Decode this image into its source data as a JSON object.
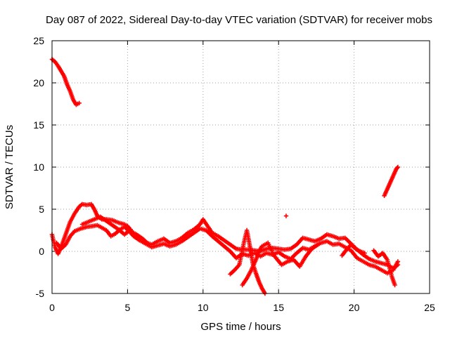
{
  "chart_data": {
    "type": "scatter",
    "title": "Day 087 of 2022, Sidereal Day-to-day VTEC variation (SDTVAR) for receiver mobs",
    "xlabel": "GPS time / hours",
    "ylabel": "SDTVAR / TECUs",
    "xlim": [
      0,
      25
    ],
    "ylim": [
      -5,
      25
    ],
    "xticks": [
      0,
      5,
      10,
      15,
      20,
      25
    ],
    "yticks": [
      -5,
      0,
      5,
      10,
      15,
      20,
      25
    ],
    "grid": true,
    "marker": "plus",
    "series": [
      {
        "name": "SDTVAR",
        "color": "#ff0000",
        "segments": [
          [
            [
              0.0,
              22.8
            ],
            [
              0.2,
              22.5
            ],
            [
              0.4,
              22.0
            ],
            [
              0.6,
              21.4
            ],
            [
              0.8,
              20.8
            ],
            [
              1.0,
              19.8
            ],
            [
              1.2,
              19.0
            ],
            [
              1.4,
              18.0
            ],
            [
              1.6,
              17.4
            ],
            [
              1.8,
              17.6
            ]
          ],
          [
            [
              22.0,
              6.6
            ],
            [
              22.2,
              7.4
            ],
            [
              22.4,
              8.2
            ],
            [
              22.6,
              9.0
            ],
            [
              22.8,
              9.8
            ],
            [
              22.9,
              10.0
            ]
          ],
          [
            [
              0.0,
              2.0
            ],
            [
              0.2,
              0.5
            ],
            [
              0.4,
              -0.3
            ],
            [
              0.6,
              0.5
            ],
            [
              0.8,
              1.5
            ],
            [
              1.0,
              2.5
            ],
            [
              1.2,
              3.5
            ],
            [
              1.5,
              4.5
            ],
            [
              1.8,
              5.3
            ],
            [
              2.0,
              5.6
            ],
            [
              2.3,
              5.5
            ],
            [
              2.6,
              5.6
            ],
            [
              2.8,
              5.0
            ],
            [
              3.0,
              4.2
            ],
            [
              3.3,
              3.8
            ],
            [
              3.6,
              3.8
            ],
            [
              4.0,
              3.7
            ],
            [
              4.4,
              3.4
            ],
            [
              4.8,
              3.2
            ],
            [
              5.0,
              3.0
            ],
            [
              5.3,
              2.3
            ],
            [
              5.6,
              2.0
            ],
            [
              6.0,
              1.5
            ],
            [
              6.3,
              1.0
            ],
            [
              6.6,
              0.8
            ],
            [
              7.0,
              1.2
            ],
            [
              7.4,
              1.5
            ],
            [
              7.8,
              1.0
            ],
            [
              8.2,
              1.2
            ],
            [
              8.6,
              1.6
            ],
            [
              9.0,
              2.2
            ],
            [
              9.4,
              2.6
            ],
            [
              9.8,
              3.2
            ],
            [
              10.0,
              3.8
            ],
            [
              10.3,
              3.0
            ],
            [
              10.6,
              2.2
            ],
            [
              11.0,
              1.8
            ],
            [
              11.4,
              1.3
            ],
            [
              11.8,
              0.8
            ],
            [
              12.2,
              0.3
            ],
            [
              12.6,
              0.2
            ],
            [
              13.0,
              0.2
            ],
            [
              13.4,
              0.1
            ],
            [
              13.8,
              0.0
            ],
            [
              14.2,
              0.3
            ],
            [
              14.6,
              0.4
            ],
            [
              15.0,
              0.3
            ],
            [
              15.4,
              0.2
            ],
            [
              15.8,
              0.3
            ],
            [
              16.2,
              0.8
            ],
            [
              16.6,
              1.6
            ],
            [
              17.0,
              1.4
            ],
            [
              17.4,
              1.2
            ],
            [
              17.8,
              1.5
            ],
            [
              18.2,
              2.0
            ],
            [
              18.6,
              1.8
            ],
            [
              19.0,
              1.5
            ],
            [
              19.4,
              1.6
            ],
            [
              19.8,
              0.9
            ],
            [
              20.2,
              0.2
            ],
            [
              20.6,
              -0.4
            ],
            [
              21.0,
              -0.9
            ],
            [
              21.4,
              -1.2
            ],
            [
              21.8,
              -1.4
            ],
            [
              22.2,
              -1.6
            ],
            [
              22.6,
              -2.0
            ],
            [
              22.9,
              -1.6
            ]
          ],
          [
            [
              0.3,
              1.0
            ],
            [
              0.6,
              0.3
            ],
            [
              0.9,
              0.8
            ],
            [
              1.2,
              1.8
            ],
            [
              1.5,
              2.4
            ],
            [
              1.9,
              2.7
            ],
            [
              2.3,
              2.9
            ],
            [
              2.7,
              3.0
            ],
            [
              3.0,
              3.1
            ],
            [
              3.3,
              2.8
            ],
            [
              3.6,
              2.5
            ],
            [
              3.9,
              1.8
            ],
            [
              4.2,
              2.1
            ],
            [
              4.5,
              2.6
            ],
            [
              4.8,
              2.9
            ],
            [
              5.1,
              2.4
            ],
            [
              5.4,
              1.8
            ],
            [
              5.8,
              1.3
            ],
            [
              6.2,
              0.9
            ],
            [
              6.6,
              0.5
            ],
            [
              7.0,
              0.7
            ],
            [
              7.4,
              0.9
            ],
            [
              7.8,
              0.6
            ],
            [
              8.2,
              0.8
            ],
            [
              8.6,
              1.2
            ],
            [
              9.0,
              1.7
            ],
            [
              9.4,
              2.2
            ],
            [
              9.8,
              2.7
            ],
            [
              10.2,
              2.5
            ],
            [
              10.6,
              1.8
            ],
            [
              11.0,
              1.2
            ],
            [
              11.4,
              0.6
            ],
            [
              11.8,
              0.0
            ],
            [
              12.2,
              -0.8
            ],
            [
              12.6,
              -0.3
            ],
            [
              13.0,
              -0.5
            ],
            [
              13.4,
              -0.2
            ],
            [
              13.8,
              -0.6
            ],
            [
              14.2,
              -0.2
            ],
            [
              14.6,
              -0.4
            ],
            [
              15.0,
              -0.1
            ],
            [
              15.4,
              -0.6
            ],
            [
              15.8,
              -0.9
            ],
            [
              16.2,
              -0.2
            ],
            [
              16.6,
              0.4
            ],
            [
              17.0,
              0.2
            ],
            [
              17.4,
              0.6
            ],
            [
              17.8,
              1.0
            ],
            [
              18.2,
              1.2
            ],
            [
              18.6,
              0.8
            ],
            [
              19.0,
              0.9
            ],
            [
              19.4,
              0.5
            ],
            [
              19.8,
              0.1
            ],
            [
              20.2,
              -0.8
            ],
            [
              20.6,
              -1.2
            ],
            [
              21.0,
              -1.6
            ],
            [
              21.4,
              -1.8
            ],
            [
              21.8,
              -2.2
            ],
            [
              22.2,
              -2.6
            ],
            [
              22.6,
              -2.2
            ],
            [
              22.9,
              -1.2
            ]
          ],
          [
            [
              11.8,
              -2.7
            ],
            [
              12.1,
              -2.2
            ],
            [
              12.4,
              -1.6
            ],
            [
              12.7,
              1.0
            ],
            [
              12.9,
              2.5
            ],
            [
              13.1,
              0.6
            ],
            [
              13.3,
              -1.5
            ],
            [
              13.5,
              -2.6
            ],
            [
              13.7,
              -3.6
            ],
            [
              13.9,
              -4.4
            ],
            [
              14.1,
              -5.0
            ]
          ],
          [
            [
              12.6,
              -4.0
            ],
            [
              12.9,
              -3.2
            ],
            [
              13.2,
              -2.2
            ],
            [
              13.5,
              -1.0
            ],
            [
              13.7,
              0.0
            ],
            [
              13.9,
              0.6
            ],
            [
              14.3,
              1.0
            ],
            [
              14.7,
              -0.5
            ],
            [
              15.2,
              -1.6
            ],
            [
              15.6,
              -1.2
            ],
            [
              16.0,
              -1.0
            ],
            [
              16.4,
              -1.8
            ],
            [
              16.8,
              -0.6
            ],
            [
              17.2,
              0.3
            ],
            [
              17.6,
              0.8
            ]
          ],
          [
            [
              2.0,
              3.2
            ],
            [
              2.4,
              3.5
            ],
            [
              2.8,
              3.8
            ],
            [
              3.2,
              4.1
            ],
            [
              3.6,
              3.6
            ],
            [
              4.0,
              3.1
            ],
            [
              4.4,
              2.6
            ],
            [
              4.8,
              2.0
            ],
            [
              5.2,
              2.6
            ]
          ],
          [
            [
              15.5,
              4.2
            ]
          ],
          [
            [
              21.3,
              0.1
            ],
            [
              21.6,
              -0.6
            ],
            [
              21.9,
              -0.2
            ],
            [
              22.2,
              -1.0
            ],
            [
              22.5,
              -3.0
            ],
            [
              22.7,
              -4.0
            ]
          ],
          [
            [
              19.2,
              -0.5
            ],
            [
              19.5,
              0.2
            ],
            [
              19.8,
              0.8
            ],
            [
              20.1,
              0.3
            ],
            [
              20.4,
              0.0
            ],
            [
              20.7,
              -0.2
            ]
          ]
        ]
      }
    ]
  }
}
